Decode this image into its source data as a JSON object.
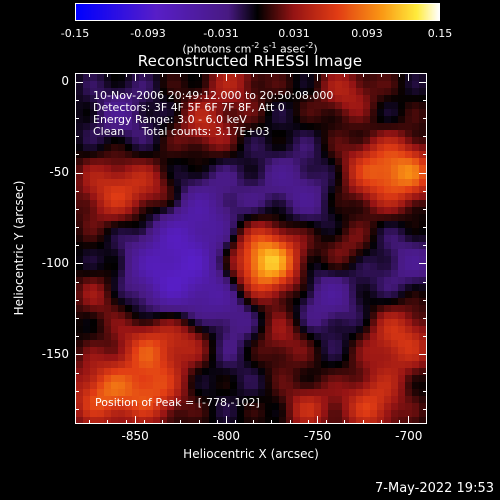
{
  "colorbar": {
    "ticks": [
      "-0.15",
      "-0.093",
      "-0.031",
      "0.031",
      "0.093",
      "0.15"
    ],
    "unit_parts": [
      "(photons cm",
      "-2",
      " s",
      "-1",
      " asec",
      "-2",
      ")"
    ]
  },
  "title": "Reconstructed RHESSI Image",
  "info": {
    "time_range": "10-Nov-2006 20:49:12.000 to 20:50:08.000",
    "detectors": "Detectors: 3F 4F 5F 6F 7F 8F, Att 0",
    "energy": "Energy Range: 3.0 - 6.0 keV",
    "method": "Clean     Total counts: 3.17E+03",
    "peak": "Position of Peak = [-778,-102]"
  },
  "axes": {
    "xlabel": "Heliocentric X (arcsec)",
    "ylabel": "Heliocentric Y (arcsec)",
    "xticks": [
      "-850",
      "-800",
      "-750",
      "-700"
    ],
    "yticks": [
      "0",
      "-50",
      "-100",
      "-150"
    ]
  },
  "datestamp": "7-May-2022 19:53",
  "chart_data": {
    "type": "heatmap",
    "title": "Reconstructed RHESSI Image",
    "xlabel": "Heliocentric X (arcsec)",
    "ylabel": "Heliocentric Y (arcsec)",
    "xlim": [
      -883,
      -690
    ],
    "ylim": [
      -188,
      5
    ],
    "colorbar_range": [
      -0.15,
      0.15
    ],
    "colorbar_unit": "photons cm^-2 s^-1 asec^-2",
    "peak": {
      "x": -778,
      "y": -102
    },
    "grid": false,
    "blobs": [
      {
        "x": -778,
        "y": -100,
        "w": 0.15,
        "r": 15
      },
      {
        "x": -862,
        "y": -60,
        "w": 0.06,
        "r": 14
      },
      {
        "x": -838,
        "y": -60,
        "w": 0.05,
        "r": 12
      },
      {
        "x": -812,
        "y": -25,
        "w": 0.045,
        "r": 12
      },
      {
        "x": -718,
        "y": -48,
        "w": 0.07,
        "r": 15
      },
      {
        "x": -698,
        "y": -50,
        "w": 0.06,
        "r": 11
      },
      {
        "x": -732,
        "y": -8,
        "w": 0.05,
        "r": 12
      },
      {
        "x": -795,
        "y": 2,
        "w": 0.035,
        "r": 12
      },
      {
        "x": -735,
        "y": -92,
        "w": 0.035,
        "r": 10
      },
      {
        "x": -842,
        "y": -145,
        "w": 0.065,
        "r": 13
      },
      {
        "x": -818,
        "y": -140,
        "w": 0.055,
        "r": 12
      },
      {
        "x": -868,
        "y": -172,
        "w": 0.075,
        "r": 13
      },
      {
        "x": -840,
        "y": -172,
        "w": 0.06,
        "r": 12
      },
      {
        "x": -770,
        "y": -140,
        "w": 0.055,
        "r": 13
      },
      {
        "x": -705,
        "y": -142,
        "w": 0.06,
        "r": 14
      },
      {
        "x": -720,
        "y": -178,
        "w": 0.06,
        "r": 12
      },
      {
        "x": -755,
        "y": -180,
        "w": 0.045,
        "r": 10
      },
      {
        "x": -870,
        "y": -118,
        "w": 0.03,
        "r": 10
      },
      {
        "x": -822,
        "y": -78,
        "w": -0.06,
        "r": 22
      },
      {
        "x": -800,
        "y": -125,
        "w": -0.055,
        "r": 22
      },
      {
        "x": -750,
        "y": -118,
        "w": -0.045,
        "r": 18
      },
      {
        "x": -835,
        "y": -110,
        "w": -0.045,
        "r": 16
      },
      {
        "x": -760,
        "y": -60,
        "w": -0.035,
        "r": 18
      },
      {
        "x": -858,
        "y": -18,
        "w": -0.03,
        "r": 14
      },
      {
        "x": -700,
        "y": -100,
        "w": -0.03,
        "r": 14
      },
      {
        "x": -725,
        "y": -20,
        "w": -0.025,
        "r": 12
      }
    ]
  }
}
